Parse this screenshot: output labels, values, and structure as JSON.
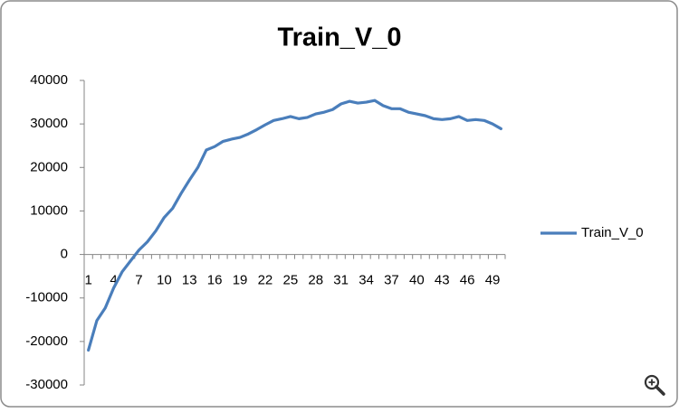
{
  "chart_data": {
    "type": "line",
    "title": "Train_V_0",
    "categories": [
      1,
      null,
      null,
      4,
      null,
      null,
      7,
      null,
      null,
      10,
      null,
      null,
      13,
      null,
      null,
      16,
      null,
      null,
      19,
      null,
      null,
      22,
      null,
      null,
      25,
      null,
      null,
      28,
      null,
      null,
      31,
      null,
      null,
      34,
      null,
      null,
      37,
      null,
      null,
      40,
      null,
      null,
      43,
      null,
      null,
      46,
      null,
      null,
      49,
      null
    ],
    "series": [
      {
        "name": "Train_V_0",
        "color": "#4a7ebb",
        "values": [
          -22000,
          -15200,
          -12300,
          -7700,
          -4000,
          -1500,
          1000,
          2900,
          5400,
          8500,
          10600,
          14000,
          17100,
          20000,
          24000,
          24800,
          26000,
          26500,
          26900,
          27700,
          28700,
          29800,
          30800,
          31200,
          31700,
          31200,
          31500,
          32300,
          32700,
          33300,
          34600,
          35200,
          34800,
          35000,
          35400,
          34200,
          33500,
          33500,
          32700,
          32300,
          31900,
          31200,
          31000,
          31200,
          31700,
          30800,
          31000,
          30800,
          30000,
          28900
        ]
      }
    ],
    "ylim": [
      -30000,
      40000
    ],
    "yticks": [
      -30000,
      -20000,
      -10000,
      0,
      10000,
      20000,
      30000,
      40000
    ],
    "grid": false,
    "legend": "right"
  }
}
